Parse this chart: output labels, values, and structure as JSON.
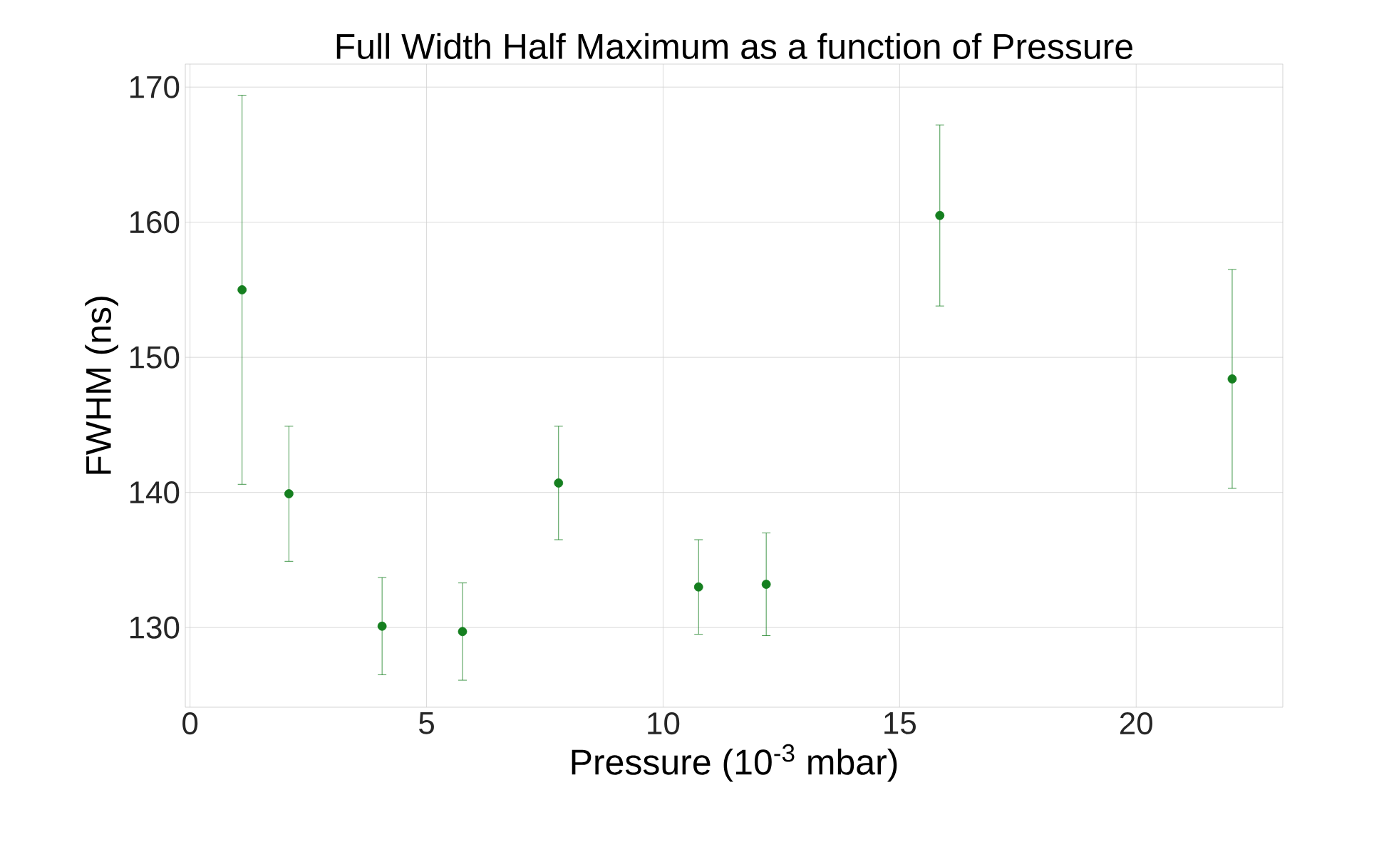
{
  "chart_data": {
    "type": "scatter",
    "title": "Full Width Half Maximum as a function of Pressure",
    "xlabel": "Pressure (10$^{-3}$ mbar)",
    "ylabel": "FWHM (ns)",
    "x": [
      1.1,
      2.09,
      4.06,
      5.76,
      7.79,
      10.75,
      12.18,
      15.85,
      22.03
    ],
    "values": [
      155.0,
      139.9,
      130.1,
      129.7,
      140.7,
      133.0,
      133.2,
      160.5,
      148.4
    ],
    "errors": [
      14.4,
      5.0,
      3.6,
      3.6,
      4.2,
      3.5,
      3.8,
      6.7,
      8.1
    ],
    "color": "#157f1f",
    "marker": "circle",
    "xlim": [
      -0.1,
      23.1
    ],
    "ylim": [
      124.1,
      171.7
    ],
    "xticks": [
      0,
      5,
      10,
      15,
      20
    ],
    "yticks": [
      130,
      140,
      150,
      160,
      170
    ],
    "grid": true
  }
}
